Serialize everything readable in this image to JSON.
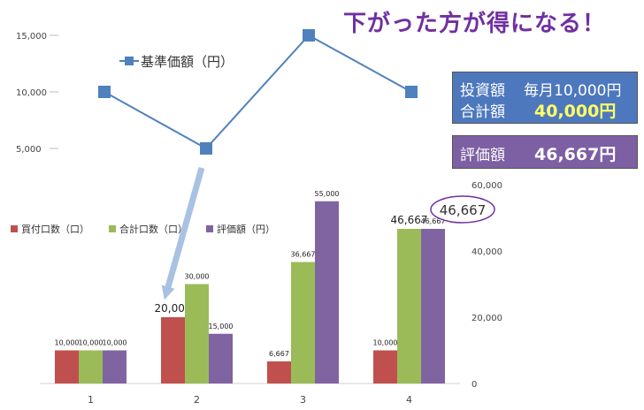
{
  "headline": "下がった方が得になる！",
  "info": {
    "invest_label": "投資額",
    "invest_value": "毎月10,000円",
    "total_label": "合計額",
    "total_value": "40,000円",
    "valuation_label": "評価額",
    "valuation_value": "46,667円"
  },
  "colors": {
    "line": "#4f81bd",
    "purchase": "#c0504d",
    "cumulative": "#9bbb59",
    "valuation": "#8064a2",
    "arrow": "#a9c1e3",
    "callout": "#7030a0"
  },
  "chart_data": [
    {
      "type": "line",
      "x": [
        "1",
        "2",
        "3",
        "4"
      ],
      "series": [
        {
          "name": "基準価額（円）",
          "values": [
            10000,
            5000,
            15000,
            10000
          ]
        }
      ],
      "yticks": [
        "5,000",
        "10,000",
        "15,000"
      ],
      "ylim": [
        0,
        15000
      ],
      "legend": "top-left",
      "grid": false
    },
    {
      "type": "bar",
      "categories": [
        "1",
        "2",
        "3",
        "4"
      ],
      "series": [
        {
          "name": "買付口数（口）",
          "values": [
            10000,
            20000,
            6667,
            10000
          ],
          "labels": [
            "10,000",
            "20,000",
            "6,667",
            "10,000"
          ]
        },
        {
          "name": "合計口数（口）",
          "values": [
            10000,
            30000,
            36667,
            46667
          ],
          "labels": [
            "10,000",
            "30,000",
            "36,667",
            "46,667"
          ]
        },
        {
          "name": "評価額（円）",
          "values": [
            10000,
            15000,
            55000,
            46667
          ],
          "labels": [
            "10,000",
            "15,000",
            "55,000",
            "46,667"
          ]
        }
      ],
      "yticks": [
        "0",
        "20,000",
        "40,000",
        "60,000"
      ],
      "ylim": [
        0,
        60000
      ],
      "axis_side": "right",
      "legend": "left",
      "grid": false,
      "callout": "46,667"
    }
  ]
}
